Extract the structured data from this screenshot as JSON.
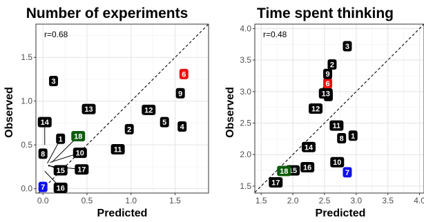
{
  "chart_data": [
    {
      "type": "scatter",
      "title": "Number of experiments",
      "xlabel": "Predicted",
      "ylabel": "Observed",
      "xlim": [
        -0.08,
        1.88
      ],
      "ylim": [
        -0.05,
        1.88
      ],
      "xticks": [
        0.0,
        0.5,
        1.0,
        1.5
      ],
      "xtick_labels": [
        "0.0",
        "0.5",
        "1.0",
        "1.5"
      ],
      "yticks": [
        0.0,
        0.5,
        1.0,
        1.5
      ],
      "ytick_labels": [
        "0.0",
        "0.5",
        "1.0",
        "1.5"
      ],
      "annotation": "r=0.68",
      "identity_line": true,
      "grid": true,
      "points": [
        {
          "label": "1",
          "x": 0.05,
          "y": 0.29,
          "lx": 0.2,
          "ly": 0.57,
          "color": "#000000"
        },
        {
          "label": "2",
          "x": 0.98,
          "y": 0.68,
          "lx": 0.98,
          "ly": 0.68,
          "color": "#000000"
        },
        {
          "label": "3",
          "x": 0.12,
          "y": 1.23,
          "lx": 0.12,
          "ly": 1.23,
          "color": "#000000"
        },
        {
          "label": "4",
          "x": 1.58,
          "y": 0.71,
          "lx": 1.58,
          "ly": 0.71,
          "color": "#000000"
        },
        {
          "label": "5",
          "x": 1.38,
          "y": 0.76,
          "lx": 1.38,
          "ly": 0.76,
          "color": "#000000"
        },
        {
          "label": "6",
          "x": 1.6,
          "y": 1.31,
          "lx": 1.6,
          "ly": 1.31,
          "color": "#ee1111"
        },
        {
          "label": "7",
          "x": 0.0,
          "y": 0.02,
          "lx": 0.0,
          "ly": 0.02,
          "color": "#1010ee"
        },
        {
          "label": "8",
          "x": 0.0,
          "y": 0.4,
          "lx": 0.0,
          "ly": 0.4,
          "color": "#000000"
        },
        {
          "label": "9",
          "x": 1.56,
          "y": 1.09,
          "lx": 1.56,
          "ly": 1.09,
          "color": "#000000"
        },
        {
          "label": "10",
          "x": 0.08,
          "y": 0.3,
          "lx": 0.42,
          "ly": 0.41,
          "color": "#000000"
        },
        {
          "label": "11",
          "x": 0.85,
          "y": 0.45,
          "lx": 0.85,
          "ly": 0.45,
          "color": "#000000"
        },
        {
          "label": "12",
          "x": 1.2,
          "y": 0.9,
          "lx": 1.2,
          "ly": 0.9,
          "color": "#000000"
        },
        {
          "label": "13",
          "x": 0.52,
          "y": 0.91,
          "lx": 0.52,
          "ly": 0.91,
          "color": "#000000"
        },
        {
          "label": "14",
          "x": 0.02,
          "y": 0.5,
          "lx": 0.02,
          "ly": 0.76,
          "color": "#000000"
        },
        {
          "label": "15",
          "x": 0.06,
          "y": 0.27,
          "lx": 0.2,
          "ly": 0.21,
          "color": "#000000"
        },
        {
          "label": "16",
          "x": 0.02,
          "y": 0.2,
          "lx": 0.2,
          "ly": 0.01,
          "color": "#000000"
        },
        {
          "label": "17",
          "x": 0.06,
          "y": 0.26,
          "lx": 0.44,
          "ly": 0.22,
          "color": "#000000"
        },
        {
          "label": "18",
          "x": 0.1,
          "y": 0.3,
          "lx": 0.4,
          "ly": 0.6,
          "color": "#0c5c0c"
        }
      ]
    },
    {
      "type": "scatter",
      "title": "Time spent thinking",
      "xlabel": "Predicted",
      "ylabel": "Observed",
      "xlim": [
        1.4,
        4.07
      ],
      "ylim": [
        1.39,
        4.07
      ],
      "xticks": [
        1.5,
        2.0,
        2.5,
        3.0,
        3.5,
        4.0
      ],
      "xtick_labels": [
        "1.5",
        "2.0",
        "2.5",
        "3.0",
        "3.5",
        "4.0"
      ],
      "yticks": [
        1.5,
        2.0,
        2.5,
        3.0,
        3.5,
        4.0
      ],
      "ytick_labels": [
        "1.5",
        "2.0",
        "2.5",
        "3.0",
        "3.5",
        "4.0"
      ],
      "annotation": "r=0.48",
      "identity_line": true,
      "grid": true,
      "points": [
        {
          "label": "1",
          "x": 2.95,
          "y": 2.3,
          "lx": 2.95,
          "ly": 2.3,
          "color": "#000000"
        },
        {
          "label": "2",
          "x": 2.62,
          "y": 3.43,
          "lx": 2.62,
          "ly": 3.43,
          "color": "#000000"
        },
        {
          "label": "3",
          "x": 2.86,
          "y": 3.72,
          "lx": 2.86,
          "ly": 3.72,
          "color": "#000000"
        },
        {
          "label": "4",
          "x": 2.54,
          "y": 3.0,
          "lx": 2.54,
          "ly": 3.0,
          "color": "#000000"
        },
        {
          "label": "5",
          "x": 2.56,
          "y": 2.93,
          "lx": 2.56,
          "ly": 2.93,
          "color": "#000000"
        },
        {
          "label": "6",
          "x": 2.55,
          "y": 3.13,
          "lx": 2.55,
          "ly": 3.13,
          "color": "#ee1111"
        },
        {
          "label": "7",
          "x": 2.86,
          "y": 1.72,
          "lx": 2.86,
          "ly": 1.72,
          "color": "#1010ee"
        },
        {
          "label": "8",
          "x": 2.77,
          "y": 2.26,
          "lx": 2.77,
          "ly": 2.26,
          "color": "#000000"
        },
        {
          "label": "9",
          "x": 2.55,
          "y": 3.28,
          "lx": 2.55,
          "ly": 3.28,
          "color": "#000000"
        },
        {
          "label": "10",
          "x": 2.7,
          "y": 1.88,
          "lx": 2.7,
          "ly": 1.88,
          "color": "#000000"
        },
        {
          "label": "11",
          "x": 2.69,
          "y": 2.46,
          "lx": 2.69,
          "ly": 2.46,
          "color": "#000000"
        },
        {
          "label": "12",
          "x": 2.36,
          "y": 2.73,
          "lx": 2.36,
          "ly": 2.73,
          "color": "#000000"
        },
        {
          "label": "13",
          "x": 2.52,
          "y": 2.97,
          "lx": 2.52,
          "ly": 2.97,
          "color": "#000000"
        },
        {
          "label": "14",
          "x": 2.25,
          "y": 2.12,
          "lx": 2.25,
          "ly": 2.12,
          "color": "#000000"
        },
        {
          "label": "15",
          "x": 2.0,
          "y": 1.75,
          "lx": 2.0,
          "ly": 1.75,
          "color": "#000000"
        },
        {
          "label": "16",
          "x": 2.23,
          "y": 1.8,
          "lx": 2.23,
          "ly": 1.8,
          "color": "#000000"
        },
        {
          "label": "17",
          "x": 1.73,
          "y": 1.56,
          "lx": 1.73,
          "ly": 1.56,
          "color": "#000000"
        },
        {
          "label": "18",
          "x": 1.86,
          "y": 1.74,
          "lx": 1.86,
          "ly": 1.74,
          "color": "#0c5c0c"
        }
      ]
    }
  ]
}
